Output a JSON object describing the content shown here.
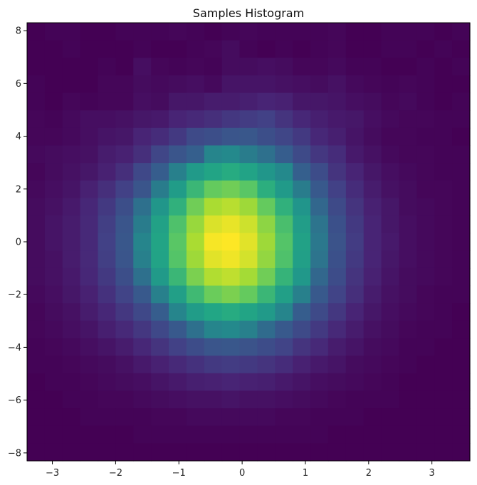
{
  "chart_data": {
    "type": "heatmap",
    "title": "Samples Histogram",
    "xlabel": "",
    "ylabel": "",
    "xlim": [
      -3.4,
      3.6
    ],
    "ylim": [
      -8.3,
      8.3
    ],
    "x_ticks": [
      -3,
      -2,
      -1,
      0,
      1,
      2,
      3
    ],
    "y_ticks": [
      -8,
      -6,
      -4,
      -2,
      0,
      2,
      4,
      6,
      8
    ],
    "x_tick_labels": [
      "−3",
      "−2",
      "−1",
      "0",
      "1",
      "2",
      "3"
    ],
    "y_tick_labels": [
      "−8",
      "−6",
      "−4",
      "−2",
      "0",
      "2",
      "4",
      "6",
      "8"
    ],
    "colormap": "viridis",
    "value_range": [
      0,
      1
    ],
    "grid": false,
    "bins": {
      "x": 25,
      "y": 25
    },
    "values": [
      [
        0.0,
        0.01,
        0.01,
        0.0,
        0.0,
        0.01,
        0.01,
        0.01,
        0.02,
        0.01,
        0.0,
        0.01,
        0.02,
        0.01,
        0.01,
        0.01,
        0.01,
        0.02,
        0.0,
        0.0,
        0.01,
        0.01,
        0.01,
        0.0,
        0.01
      ],
      [
        0.0,
        0.0,
        0.01,
        0.0,
        0.0,
        0.0,
        0.01,
        0.0,
        0.0,
        0.01,
        0.02,
        0.04,
        0.01,
        0.0,
        0.01,
        0.0,
        0.01,
        0.02,
        0.0,
        0.0,
        0.01,
        0.01,
        0.0,
        0.01,
        0.0
      ],
      [
        0.0,
        0.0,
        0.0,
        0.0,
        0.01,
        0.0,
        0.05,
        0.02,
        0.01,
        0.02,
        0.01,
        0.04,
        0.04,
        0.05,
        0.04,
        0.02,
        0.02,
        0.03,
        0.01,
        0.01,
        0.0,
        0.0,
        0.01,
        0.0,
        0.01
      ],
      [
        0.01,
        0.0,
        0.0,
        0.0,
        0.02,
        0.02,
        0.04,
        0.03,
        0.04,
        0.05,
        0.03,
        0.07,
        0.07,
        0.07,
        0.06,
        0.05,
        0.04,
        0.06,
        0.03,
        0.02,
        0.01,
        0.02,
        0.01,
        0.0,
        0.0
      ],
      [
        0.01,
        0.0,
        0.02,
        0.01,
        0.02,
        0.02,
        0.05,
        0.04,
        0.08,
        0.08,
        0.1,
        0.1,
        0.11,
        0.13,
        0.12,
        0.08,
        0.08,
        0.07,
        0.05,
        0.04,
        0.02,
        0.03,
        0.01,
        0.0,
        0.01
      ],
      [
        0.02,
        0.01,
        0.03,
        0.05,
        0.05,
        0.06,
        0.08,
        0.09,
        0.13,
        0.15,
        0.17,
        0.2,
        0.22,
        0.24,
        0.19,
        0.14,
        0.11,
        0.09,
        0.08,
        0.05,
        0.03,
        0.02,
        0.02,
        0.01,
        0.01
      ],
      [
        0.02,
        0.02,
        0.03,
        0.05,
        0.07,
        0.08,
        0.13,
        0.16,
        0.21,
        0.28,
        0.3,
        0.33,
        0.34,
        0.3,
        0.26,
        0.21,
        0.14,
        0.11,
        0.07,
        0.04,
        0.02,
        0.02,
        0.01,
        0.01,
        0.0
      ],
      [
        0.03,
        0.04,
        0.05,
        0.06,
        0.1,
        0.12,
        0.17,
        0.26,
        0.33,
        0.38,
        0.47,
        0.48,
        0.45,
        0.42,
        0.37,
        0.28,
        0.2,
        0.16,
        0.09,
        0.06,
        0.03,
        0.02,
        0.02,
        0.01,
        0.01
      ],
      [
        0.02,
        0.04,
        0.06,
        0.08,
        0.12,
        0.17,
        0.27,
        0.37,
        0.46,
        0.55,
        0.61,
        0.64,
        0.6,
        0.53,
        0.48,
        0.38,
        0.29,
        0.19,
        0.13,
        0.08,
        0.05,
        0.03,
        0.02,
        0.01,
        0.01
      ],
      [
        0.03,
        0.05,
        0.07,
        0.12,
        0.17,
        0.24,
        0.33,
        0.45,
        0.56,
        0.68,
        0.76,
        0.78,
        0.74,
        0.65,
        0.55,
        0.45,
        0.35,
        0.24,
        0.16,
        0.1,
        0.06,
        0.04,
        0.02,
        0.02,
        0.01
      ],
      [
        0.04,
        0.06,
        0.09,
        0.14,
        0.21,
        0.3,
        0.42,
        0.53,
        0.66,
        0.78,
        0.88,
        0.9,
        0.86,
        0.76,
        0.66,
        0.52,
        0.4,
        0.28,
        0.19,
        0.12,
        0.08,
        0.04,
        0.03,
        0.02,
        0.01
      ],
      [
        0.04,
        0.07,
        0.1,
        0.15,
        0.23,
        0.33,
        0.45,
        0.59,
        0.72,
        0.85,
        0.95,
        0.97,
        0.93,
        0.83,
        0.71,
        0.57,
        0.43,
        0.31,
        0.21,
        0.13,
        0.08,
        0.05,
        0.03,
        0.02,
        0.01
      ],
      [
        0.04,
        0.07,
        0.1,
        0.15,
        0.24,
        0.34,
        0.47,
        0.61,
        0.74,
        0.88,
        0.99,
        1.0,
        0.96,
        0.86,
        0.73,
        0.59,
        0.44,
        0.32,
        0.22,
        0.13,
        0.09,
        0.05,
        0.03,
        0.02,
        0.01
      ],
      [
        0.04,
        0.06,
        0.1,
        0.15,
        0.23,
        0.33,
        0.46,
        0.6,
        0.73,
        0.86,
        0.96,
        0.98,
        0.94,
        0.84,
        0.72,
        0.58,
        0.43,
        0.31,
        0.21,
        0.13,
        0.08,
        0.05,
        0.03,
        0.02,
        0.01
      ],
      [
        0.04,
        0.06,
        0.09,
        0.14,
        0.21,
        0.3,
        0.42,
        0.55,
        0.68,
        0.8,
        0.89,
        0.91,
        0.87,
        0.78,
        0.67,
        0.54,
        0.4,
        0.29,
        0.19,
        0.12,
        0.07,
        0.04,
        0.03,
        0.02,
        0.01
      ],
      [
        0.03,
        0.05,
        0.08,
        0.12,
        0.18,
        0.25,
        0.35,
        0.46,
        0.58,
        0.69,
        0.77,
        0.8,
        0.76,
        0.68,
        0.58,
        0.46,
        0.35,
        0.25,
        0.17,
        0.1,
        0.06,
        0.04,
        0.02,
        0.01,
        0.01
      ],
      [
        0.02,
        0.04,
        0.06,
        0.1,
        0.14,
        0.2,
        0.27,
        0.37,
        0.47,
        0.56,
        0.62,
        0.64,
        0.61,
        0.55,
        0.47,
        0.37,
        0.28,
        0.2,
        0.13,
        0.08,
        0.05,
        0.03,
        0.02,
        0.01,
        0.0
      ],
      [
        0.02,
        0.03,
        0.05,
        0.07,
        0.11,
        0.15,
        0.2,
        0.27,
        0.35,
        0.42,
        0.47,
        0.48,
        0.46,
        0.41,
        0.35,
        0.28,
        0.21,
        0.15,
        0.1,
        0.06,
        0.04,
        0.02,
        0.01,
        0.01,
        0.0
      ],
      [
        0.01,
        0.02,
        0.03,
        0.05,
        0.07,
        0.1,
        0.14,
        0.19,
        0.24,
        0.29,
        0.33,
        0.34,
        0.32,
        0.29,
        0.25,
        0.19,
        0.15,
        0.1,
        0.07,
        0.04,
        0.03,
        0.01,
        0.01,
        0.0,
        0.0
      ],
      [
        0.01,
        0.01,
        0.02,
        0.03,
        0.04,
        0.06,
        0.09,
        0.12,
        0.15,
        0.18,
        0.21,
        0.22,
        0.21,
        0.19,
        0.16,
        0.12,
        0.09,
        0.07,
        0.04,
        0.03,
        0.02,
        0.01,
        0.0,
        0.0,
        0.0
      ],
      [
        0.0,
        0.01,
        0.01,
        0.02,
        0.03,
        0.04,
        0.05,
        0.07,
        0.09,
        0.11,
        0.12,
        0.13,
        0.12,
        0.11,
        0.09,
        0.07,
        0.05,
        0.04,
        0.03,
        0.02,
        0.01,
        0.0,
        0.0,
        0.0,
        0.0
      ],
      [
        0.0,
        0.0,
        0.01,
        0.01,
        0.02,
        0.02,
        0.03,
        0.04,
        0.05,
        0.06,
        0.06,
        0.07,
        0.06,
        0.06,
        0.05,
        0.04,
        0.03,
        0.02,
        0.01,
        0.01,
        0.01,
        0.0,
        0.0,
        0.0,
        0.0
      ],
      [
        0.0,
        0.0,
        0.0,
        0.01,
        0.01,
        0.01,
        0.01,
        0.02,
        0.02,
        0.03,
        0.03,
        0.03,
        0.03,
        0.03,
        0.02,
        0.02,
        0.01,
        0.01,
        0.01,
        0.0,
        0.0,
        0.0,
        0.0,
        0.0,
        0.0
      ],
      [
        0.0,
        0.0,
        0.0,
        0.0,
        0.0,
        0.0,
        0.01,
        0.01,
        0.01,
        0.01,
        0.01,
        0.01,
        0.01,
        0.01,
        0.01,
        0.01,
        0.01,
        0.0,
        0.0,
        0.0,
        0.0,
        0.0,
        0.0,
        0.0,
        0.0
      ],
      [
        0.0,
        0.0,
        0.0,
        0.0,
        0.0,
        0.0,
        0.0,
        0.0,
        0.0,
        0.0,
        0.0,
        0.0,
        0.0,
        0.0,
        0.0,
        0.0,
        0.0,
        0.0,
        0.0,
        0.0,
        0.0,
        0.0,
        0.0,
        0.0,
        0.0
      ]
    ]
  }
}
